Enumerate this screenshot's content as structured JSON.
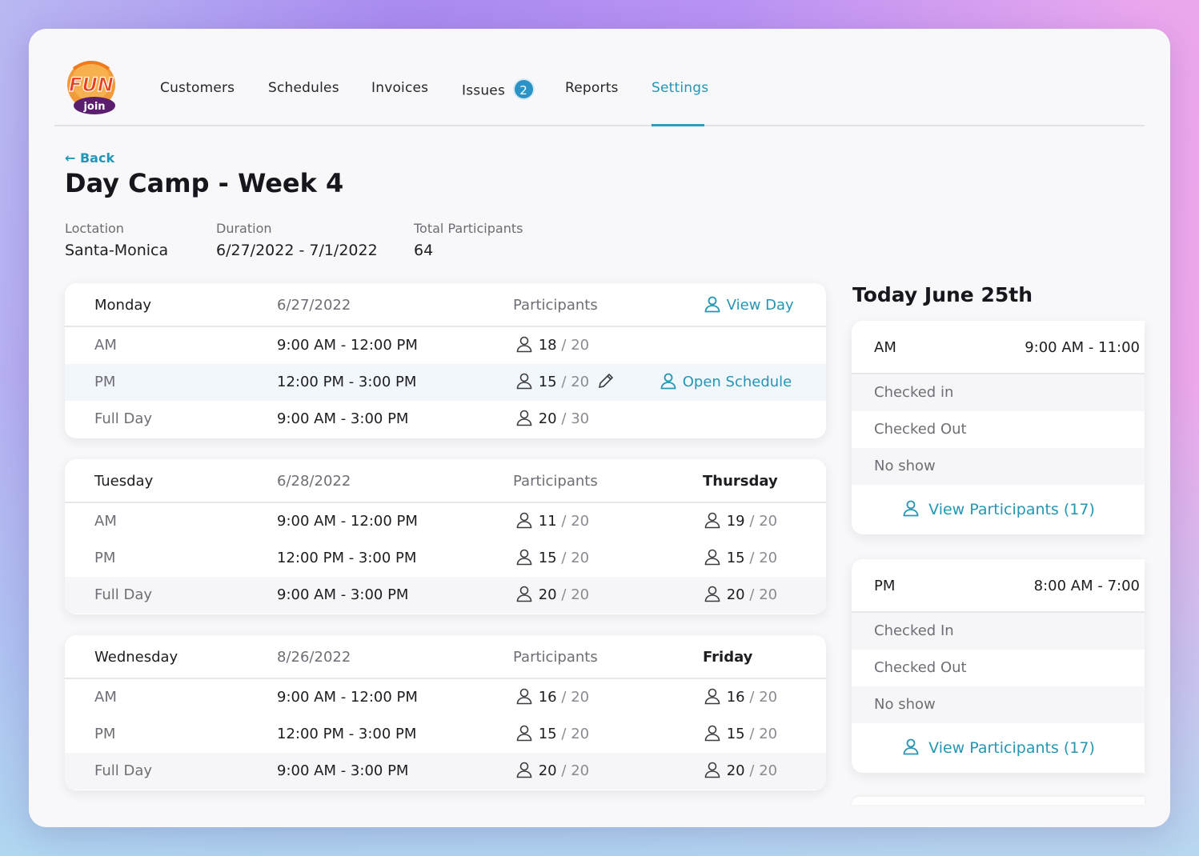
{
  "nav": {
    "items": [
      "Customers",
      "Schedules",
      "Invoices",
      "Issues",
      "Reports",
      "Settings"
    ],
    "issues_count": "2",
    "active": "Settings"
  },
  "logo": {
    "line1": "FUN",
    "line2": "join"
  },
  "header": {
    "back_label": "Back",
    "title": "Day Camp - Week 4",
    "location_label": "Loctation",
    "location_value": "Santa-Monica",
    "duration_label": "Duration",
    "duration_value": "6/27/2022 - 7/1/2022",
    "total_label": "Total Participants",
    "total_value": "64"
  },
  "schedule": {
    "participants_header": "Participants",
    "view_day_label": "View Day",
    "open_schedule_label": "Open Schedule",
    "separator": "/",
    "days": [
      {
        "day": "Monday",
        "date": "6/27/2022",
        "rows": [
          {
            "slot": "AM",
            "time": "9:00 AM - 12:00 PM",
            "count": "18",
            "cap": "20"
          },
          {
            "slot": "PM",
            "time": "12:00 PM - 3:00 PM",
            "count": "15",
            "cap": "20"
          },
          {
            "slot": "Full Day",
            "time": "9:00 AM - 3:00 PM",
            "count": "20",
            "cap": "30"
          }
        ]
      },
      {
        "day": "Tuesday",
        "date": "6/28/2022",
        "second_day": "Thursday",
        "rows": [
          {
            "slot": "AM",
            "time": "9:00 AM - 12:00 PM",
            "count": "11",
            "cap": "20",
            "count2": "19",
            "cap2": "20"
          },
          {
            "slot": "PM",
            "time": "12:00 PM - 3:00 PM",
            "count": "15",
            "cap": "20",
            "count2": "15",
            "cap2": "20"
          },
          {
            "slot": "Full Day",
            "time": "9:00 AM - 3:00 PM",
            "count": "20",
            "cap": "20",
            "count2": "20",
            "cap2": "20"
          }
        ]
      },
      {
        "day": "Wednesday",
        "date": "8/26/2022",
        "second_day": "Friday",
        "rows": [
          {
            "slot": "AM",
            "time": "9:00 AM - 12:00 PM",
            "count": "16",
            "cap": "20",
            "count2": "16",
            "cap2": "20"
          },
          {
            "slot": "PM",
            "time": "12:00 PM - 3:00 PM",
            "count": "15",
            "cap": "20",
            "count2": "15",
            "cap2": "20"
          },
          {
            "slot": "Full Day",
            "time": "9:00 AM - 3:00 PM",
            "count": "20",
            "cap": "20",
            "count2": "20",
            "cap2": "20"
          }
        ]
      }
    ]
  },
  "today": {
    "title": "Today June 25th",
    "sessions": [
      {
        "slot": "AM",
        "time": "9:00 AM - 11:00",
        "rows": [
          "Checked in",
          "Checked Out",
          "No show"
        ],
        "link": "View Participants (17)"
      },
      {
        "slot": "PM",
        "time": "8:00 AM - 7:00",
        "rows": [
          "Checked In",
          "Checked Out",
          "No show"
        ],
        "link": "View Participants (17)"
      }
    ]
  },
  "colors": {
    "accent": "#2496b3",
    "badge": "#2b93c5",
    "logo_orange": "#f07a1c",
    "logo_purple": "#5b1e6e"
  },
  "icons": [
    "user-icon",
    "pencil-icon",
    "arrow-left-icon"
  ]
}
